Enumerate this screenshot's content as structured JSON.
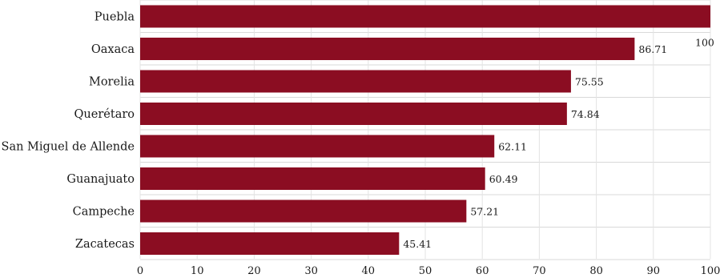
{
  "chart_data": {
    "type": "bar",
    "orientation": "horizontal",
    "categories": [
      "Puebla",
      "Oaxaca",
      "Morelia",
      "Querétaro",
      "San Miguel de Allende",
      "Guanajuato",
      "Campeche",
      "Zacatecas"
    ],
    "values": [
      100,
      86.71,
      75.55,
      74.84,
      62.11,
      60.49,
      57.21,
      45.41
    ],
    "value_labels": [
      "100",
      "86.71",
      "75.55",
      "74.84",
      "62.11",
      "60.49",
      "57.21",
      "45.41"
    ],
    "xlim": [
      0,
      100
    ],
    "x_ticks": [
      0,
      10,
      20,
      30,
      40,
      50,
      60,
      70,
      80,
      90,
      100
    ],
    "grid": true,
    "bar_color": "#8b0d22",
    "title": "",
    "xlabel": "",
    "ylabel": ""
  }
}
